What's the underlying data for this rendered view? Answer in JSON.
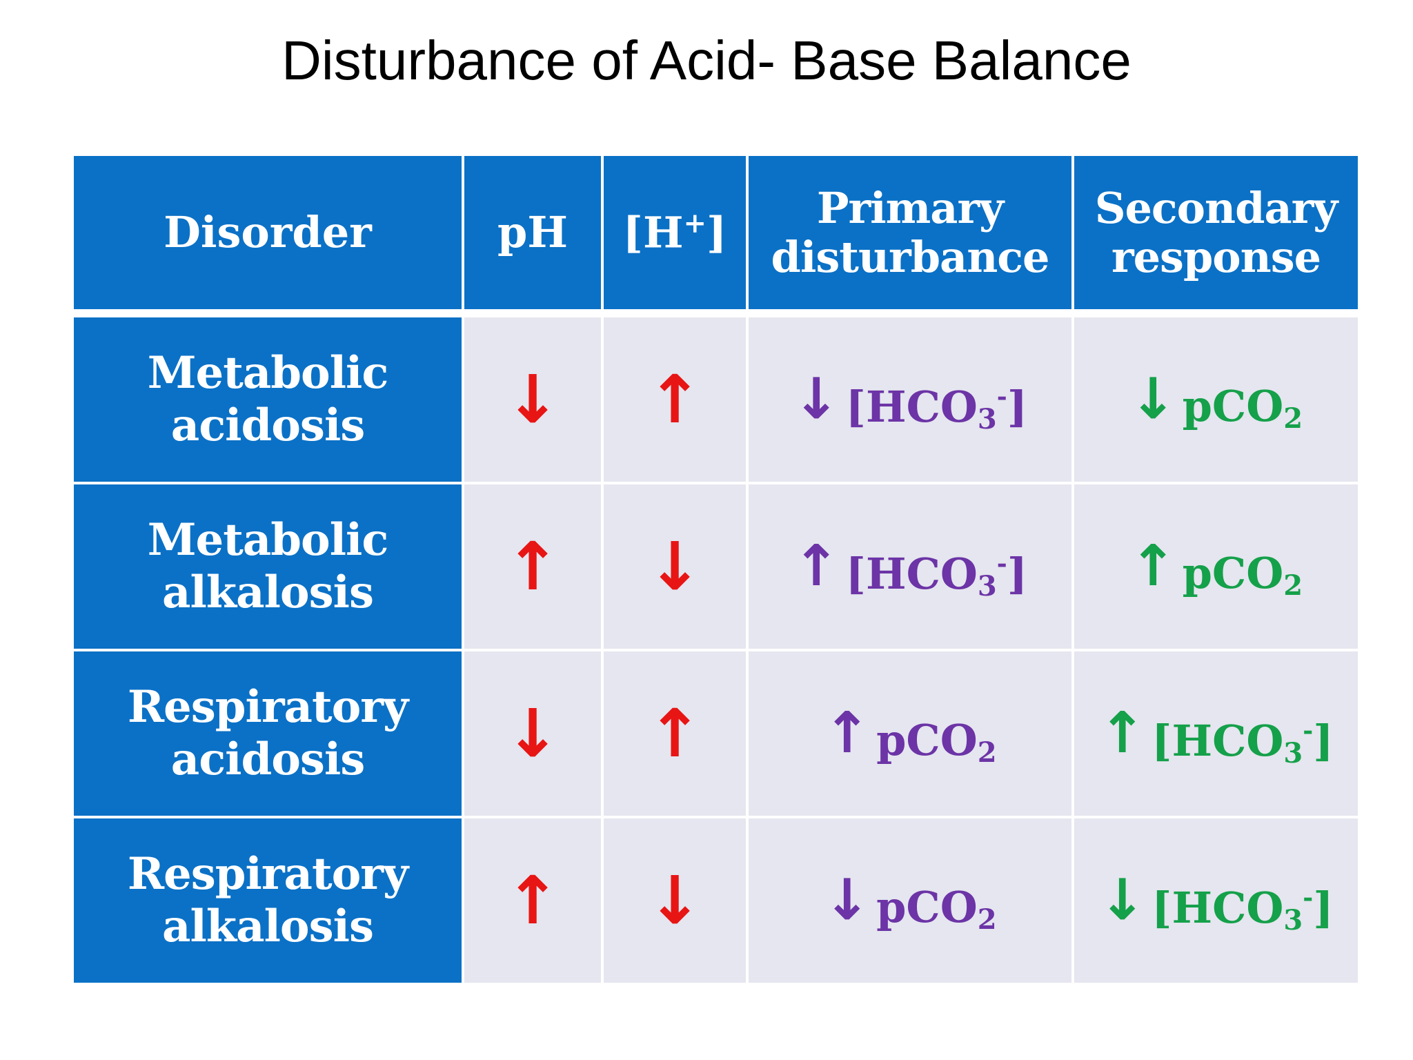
{
  "title": "Disturbance of Acid- Base Balance",
  "colors": {
    "header_blue": "#0b71c6",
    "cell_bg": "#e5e6ef",
    "arrow_red": "#e81515",
    "primary_purple": "#6c34a6",
    "secondary_green": "#15a04a"
  },
  "table": {
    "headers": {
      "disorder": "Disorder",
      "ph": "pH",
      "h_prefix": "[H",
      "h_sup": "+",
      "h_suffix": "]",
      "primary_line1": "Primary",
      "primary_line2": "disturbance",
      "secondary_line1": "Secondary",
      "secondary_line2": "response"
    },
    "rows": [
      {
        "disorder_line1": "Metabolic",
        "disorder_line2": "acidosis",
        "ph": "↓",
        "h": "↑",
        "primary_dir": "↓",
        "primary_substance": "HCO3-",
        "secondary_dir": "↓",
        "secondary_substance": "pCO2"
      },
      {
        "disorder_line1": "Metabolic",
        "disorder_line2": "alkalosis",
        "ph": "↑",
        "h": "↓",
        "primary_dir": "↑",
        "primary_substance": "HCO3-",
        "secondary_dir": "↑",
        "secondary_substance": "pCO2"
      },
      {
        "disorder_line1": "Respiratory",
        "disorder_line2": "acidosis",
        "ph": "↓",
        "h": "↑",
        "primary_dir": "↑",
        "primary_substance": "pCO2",
        "secondary_dir": "↑",
        "secondary_substance": "HCO3-"
      },
      {
        "disorder_line1": "Respiratory",
        "disorder_line2": "alkalosis",
        "ph": "↑",
        "h": "↓",
        "primary_dir": "↓",
        "primary_substance": "pCO2",
        "secondary_dir": "↓",
        "secondary_substance": "HCO3-"
      }
    ],
    "formulas": {
      "HCO3-": {
        "open": "[",
        "base": "HCO",
        "sub": "3",
        "sup": "-",
        "close": "]"
      },
      "pCO2": {
        "open": "",
        "base": "pCO",
        "sub": "2",
        "sup": "",
        "close": ""
      }
    }
  }
}
